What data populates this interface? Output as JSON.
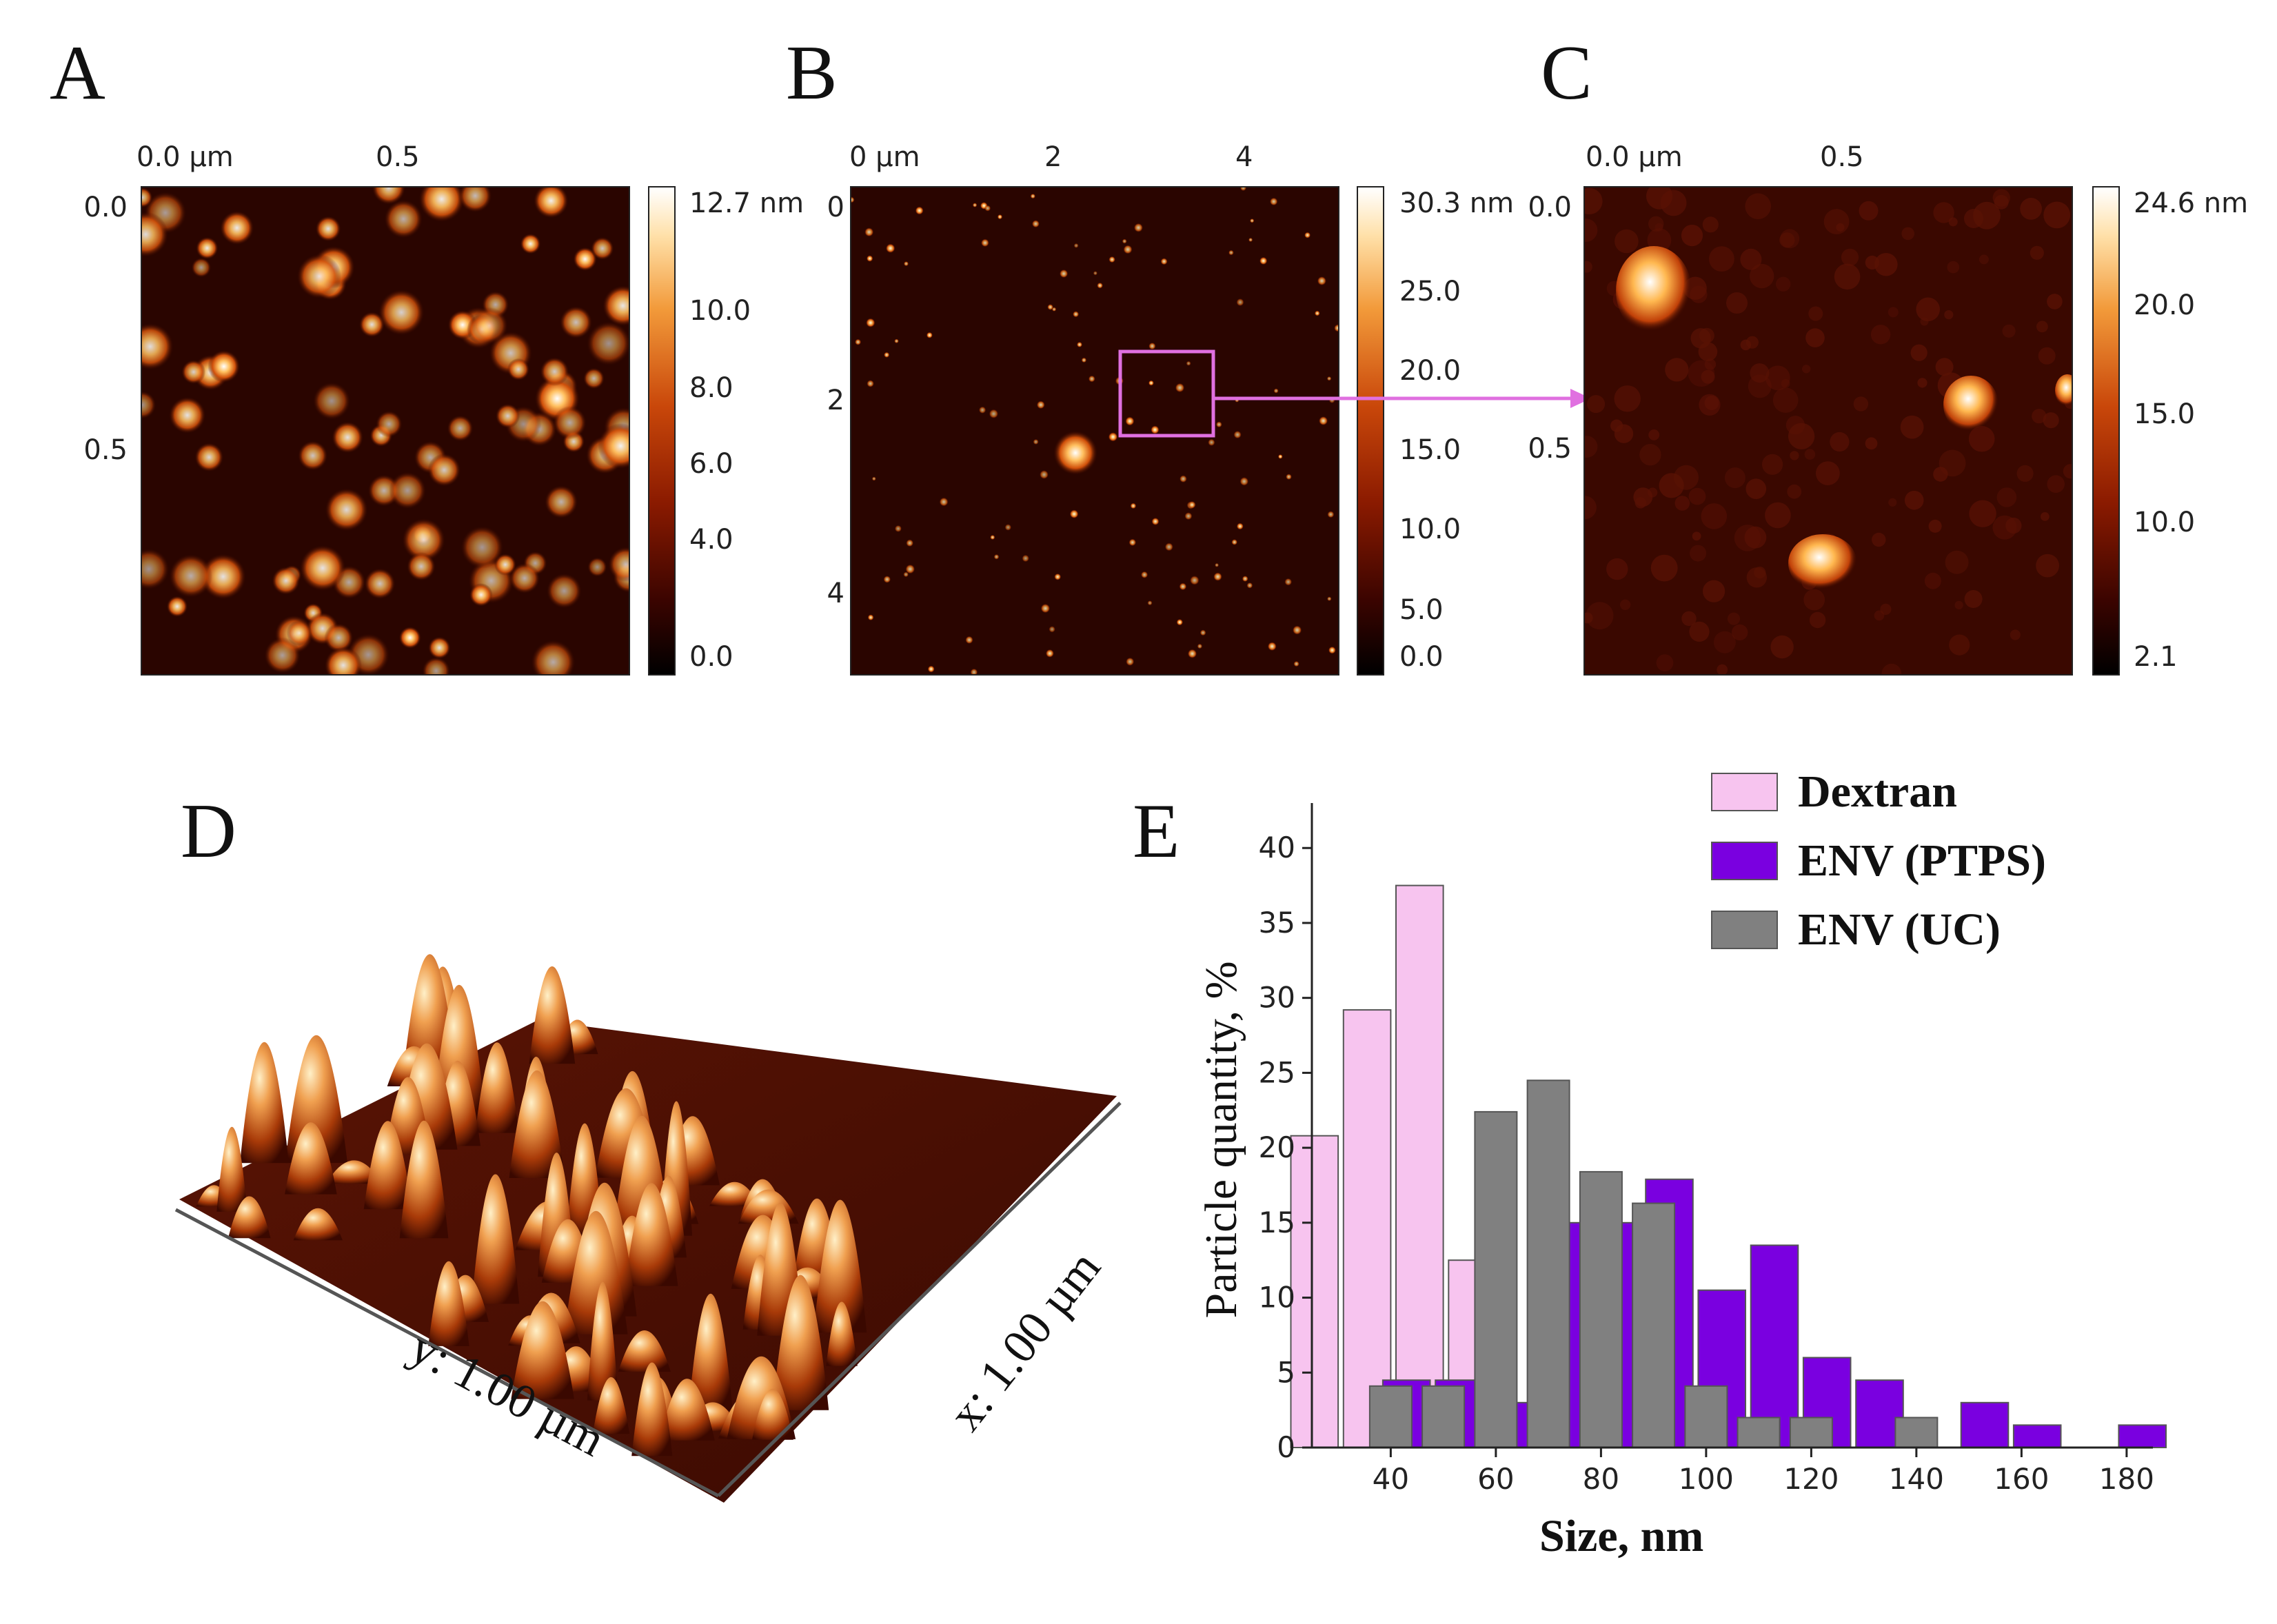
{
  "panels": {
    "A": {
      "letter": "A",
      "top_ticks": [
        "0.0 µm",
        "0.5"
      ],
      "left_ticks": [
        "0.0",
        "0.5"
      ],
      "colorbar": {
        "max_label": "12.7 nm",
        "labels": [
          "10.0",
          "8.0",
          "6.0",
          "4.0",
          "0.0"
        ]
      }
    },
    "B": {
      "letter": "B",
      "top_ticks": [
        "0 µm",
        "2",
        "4"
      ],
      "left_ticks": [
        "0",
        "2",
        "4"
      ],
      "colorbar": {
        "max_label": "30.3 nm",
        "labels": [
          "25.0",
          "20.0",
          "15.0",
          "10.0",
          "5.0",
          "0.0"
        ]
      }
    },
    "C": {
      "letter": "C",
      "top_ticks": [
        "0.0 µm",
        "0.5"
      ],
      "left_ticks": [
        "0.0",
        "0.5"
      ],
      "colorbar": {
        "max_label": "24.6 nm",
        "labels": [
          "20.0",
          "15.0",
          "10.0",
          "2.1"
        ]
      }
    },
    "D": {
      "letter": "D",
      "y_axis_label": "y: 1.00 µm",
      "x_axis_label": "x: 1.00 µm"
    },
    "E": {
      "letter": "E"
    }
  },
  "colors": {
    "afm_dark": "#1a0200",
    "afm_mid": "#a52a00",
    "afm_bright": "#ffe8b0",
    "dextran": "#f7c4ef",
    "env_ptps": "#7a00e0",
    "env_uc": "#808080",
    "zoom_box": "#e070e0"
  },
  "chart_data": {
    "type": "bar",
    "title": "",
    "xlabel": "Size, nm",
    "ylabel": "Particle quantity, %",
    "xlim": [
      25,
      185
    ],
    "ylim": [
      0,
      43
    ],
    "x_ticks": [
      40,
      60,
      80,
      100,
      120,
      140,
      160,
      180
    ],
    "y_ticks": [
      0,
      5,
      10,
      15,
      20,
      25,
      30,
      35,
      40
    ],
    "legend_position": "top-right",
    "series": [
      {
        "name": "Dextran",
        "color": "#f7c4ef",
        "points": [
          [
            30,
            20.8
          ],
          [
            40,
            29.2
          ],
          [
            50,
            37.5
          ],
          [
            60,
            12.5
          ]
        ]
      },
      {
        "name": "ENV (PTPS)",
        "color": "#7a00e0",
        "points": [
          [
            40,
            4.5
          ],
          [
            50,
            4.5
          ],
          [
            60,
            3.0
          ],
          [
            70,
            15.0
          ],
          [
            80,
            15.0
          ],
          [
            90,
            17.9
          ],
          [
            100,
            10.5
          ],
          [
            110,
            13.5
          ],
          [
            120,
            6.0
          ],
          [
            130,
            4.5
          ],
          [
            150,
            3.0
          ],
          [
            160,
            1.5
          ],
          [
            180,
            1.5
          ]
        ]
      },
      {
        "name": "ENV (UC)",
        "color": "#808080",
        "points": [
          [
            40,
            4.1
          ],
          [
            50,
            4.1
          ],
          [
            60,
            22.4
          ],
          [
            70,
            24.5
          ],
          [
            80,
            18.4
          ],
          [
            90,
            16.3
          ],
          [
            100,
            4.1
          ],
          [
            110,
            2.0
          ],
          [
            120,
            2.0
          ],
          [
            140,
            2.0
          ]
        ]
      }
    ]
  }
}
